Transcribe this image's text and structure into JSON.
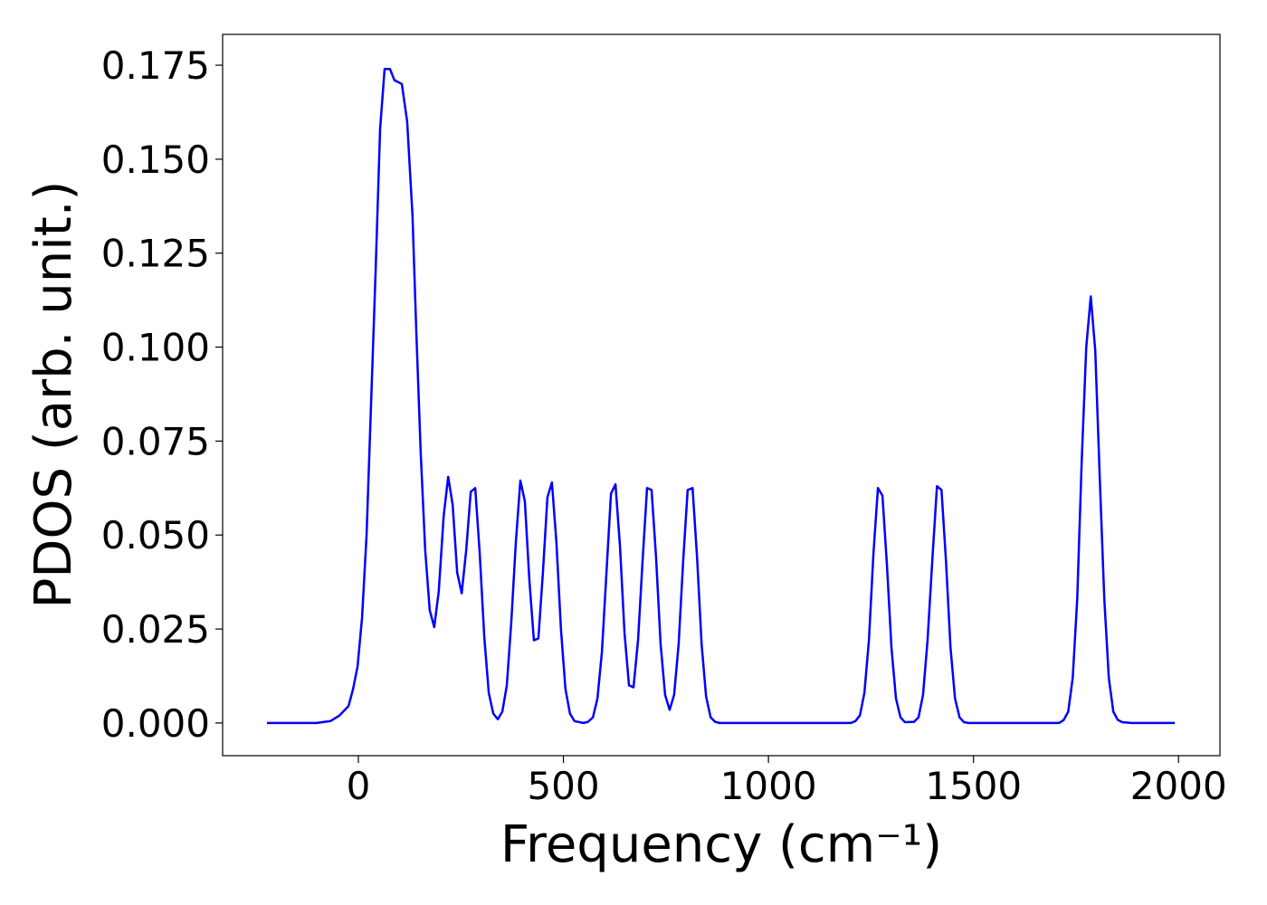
{
  "chart_data": {
    "type": "line",
    "xlabel": "Frequency (cm⁻¹)",
    "ylabel": "PDOS (arb. unit.)",
    "xlim": [
      -331,
      2101
    ],
    "ylim": [
      -0.0087,
      0.1832
    ],
    "xticks": [
      0,
      500,
      1000,
      1500,
      2000
    ],
    "yticks": [
      {
        "value": 0,
        "label": "0.000"
      },
      0.025,
      {
        "value": 0.05,
        "label": "0.050"
      },
      0.075,
      {
        "value": 0.1,
        "label": "0.100"
      },
      0.125,
      {
        "value": 0.15,
        "label": "0.150"
      },
      0.175
    ],
    "grid": false,
    "series": [
      {
        "color": "#0000ff",
        "x": [
          -223,
          -102,
          -68,
          -46,
          -24,
          -13,
          -2,
          9,
          20,
          31,
          42,
          53,
          64,
          77,
          88,
          106,
          119,
          132,
          141,
          152,
          163,
          174,
          185,
          196,
          208,
          219,
          230,
          241,
          252,
          263,
          274,
          285,
          296,
          307,
          318,
          329,
          340,
          351,
          362,
          373,
          384,
          395,
          406,
          417,
          428,
          439,
          450,
          461,
          472,
          483,
          494,
          505,
          516,
          527,
          549,
          560,
          572,
          583,
          594,
          605,
          616,
          627,
          638,
          649,
          660,
          671,
          682,
          693,
          704,
          715,
          726,
          737,
          748,
          759,
          770,
          781,
          792,
          803,
          815,
          826,
          837,
          848,
          859,
          870,
          881,
          1201,
          1212,
          1223,
          1234,
          1245,
          1256,
          1267,
          1278,
          1289,
          1300,
          1311,
          1322,
          1333,
          1355,
          1366,
          1377,
          1388,
          1400,
          1411,
          1422,
          1433,
          1444,
          1455,
          1466,
          1477,
          1488,
          1709,
          1720,
          1731,
          1742,
          1753,
          1764,
          1775,
          1786,
          1797,
          1808,
          1819,
          1830,
          1841,
          1852,
          1863,
          1885,
          1991
        ],
        "values": [
          0,
          0,
          0.0005,
          0.002,
          0.0045,
          0.009,
          0.015,
          0.028,
          0.05,
          0.085,
          0.12,
          0.158,
          0.174,
          0.174,
          0.171,
          0.17,
          0.16,
          0.135,
          0.105,
          0.072,
          0.046,
          0.03,
          0.0255,
          0.035,
          0.055,
          0.0655,
          0.058,
          0.04,
          0.0345,
          0.046,
          0.0615,
          0.0625,
          0.045,
          0.023,
          0.008,
          0.0025,
          0.001,
          0.003,
          0.01,
          0.027,
          0.048,
          0.0645,
          0.059,
          0.038,
          0.022,
          0.0225,
          0.04,
          0.06,
          0.064,
          0.048,
          0.025,
          0.009,
          0.0025,
          0.0005,
          0,
          0.0003,
          0.0015,
          0.0065,
          0.019,
          0.04,
          0.061,
          0.0635,
          0.047,
          0.024,
          0.01,
          0.0095,
          0.022,
          0.043,
          0.0625,
          0.062,
          0.044,
          0.021,
          0.0075,
          0.0035,
          0.0075,
          0.021,
          0.043,
          0.062,
          0.0625,
          0.044,
          0.021,
          0.007,
          0.0015,
          0.0003,
          0,
          0,
          0.0005,
          0.002,
          0.008,
          0.022,
          0.045,
          0.0625,
          0.0605,
          0.042,
          0.02,
          0.0065,
          0.0015,
          0.0002,
          0.0003,
          0.0015,
          0.0075,
          0.022,
          0.044,
          0.063,
          0.062,
          0.043,
          0.02,
          0.0065,
          0.0015,
          0.0002,
          0,
          0,
          0.0008,
          0.003,
          0.012,
          0.033,
          0.07,
          0.1,
          0.1135,
          0.099,
          0.065,
          0.033,
          0.012,
          0.003,
          0.0008,
          0.0002,
          0,
          0
        ]
      }
    ]
  }
}
